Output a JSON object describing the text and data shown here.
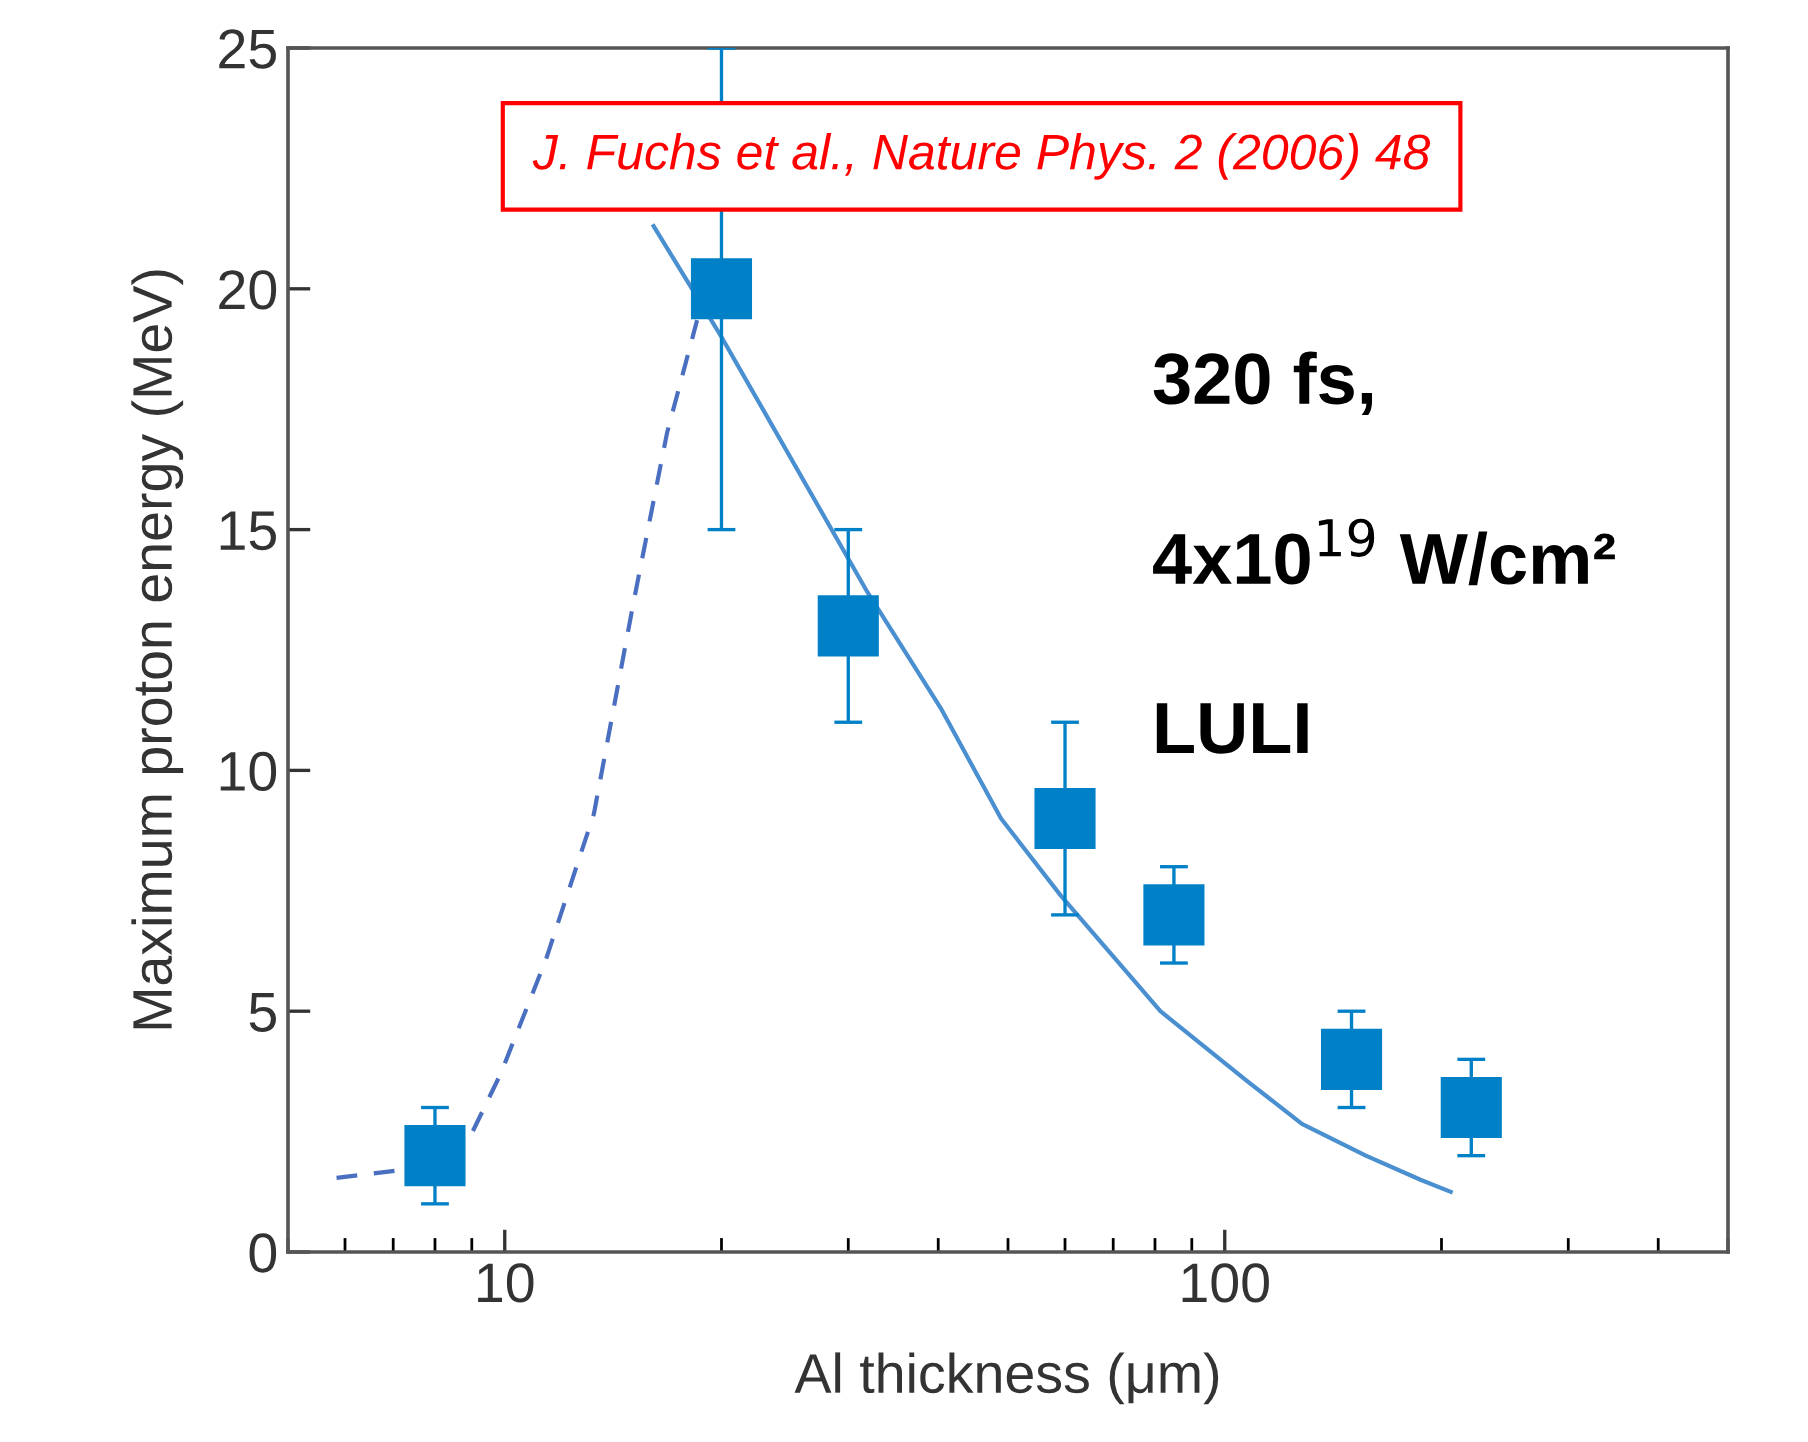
{
  "chart_data": {
    "type": "scatter",
    "xlabel": "Al thickness (μm)",
    "ylabel": "Maximum proton energy (MeV)",
    "log": "x",
    "xlim": [
      5,
      500
    ],
    "xticks": [
      10,
      100
    ],
    "ylim": [
      0,
      25
    ],
    "yticks": [
      0,
      5,
      10,
      15,
      20,
      25
    ],
    "grid": false,
    "legend": false,
    "series": [
      {
        "color": "#0080c6",
        "marker": "square",
        "x": [
          8,
          20,
          30,
          60,
          85,
          150,
          220
        ],
        "values": [
          2,
          20,
          13,
          9,
          7,
          4,
          3
        ],
        "errors": [
          1,
          5,
          2,
          2,
          1,
          1,
          1
        ]
      },
      {
        "type": "line",
        "color": "#4a8fd0",
        "line_style": "solid",
        "marker": "none",
        "x": [
          16.1,
          20,
          31.9,
          40.3,
          48.9,
          59.2,
          81.4,
          107,
          128,
          157,
          187,
          206
        ],
        "values": [
          21.3,
          19.0,
          13.7,
          11.3,
          9.0,
          7.4,
          5.0,
          3.57,
          2.66,
          2.0,
          1.5,
          1.25
        ]
      },
      {
        "type": "line",
        "color": "#4a6fc0",
        "line_style": "dashed",
        "marker": "none",
        "x": [
          5.84,
          7.17,
          8.85,
          9.87,
          11.4,
          13.3,
          15.1,
          16.8,
          18.5
        ],
        "values": [
          1.54,
          1.7,
          2.24,
          3.7,
          6.06,
          9.1,
          13.5,
          17.0,
          19.35
        ]
      }
    ],
    "annotations": [
      "J. Fuchs et al., Nature Phys. 2 (2006) 48",
      "320 fs,",
      "4x10$^{19}$ W/cm²",
      "LULI"
    ]
  }
}
